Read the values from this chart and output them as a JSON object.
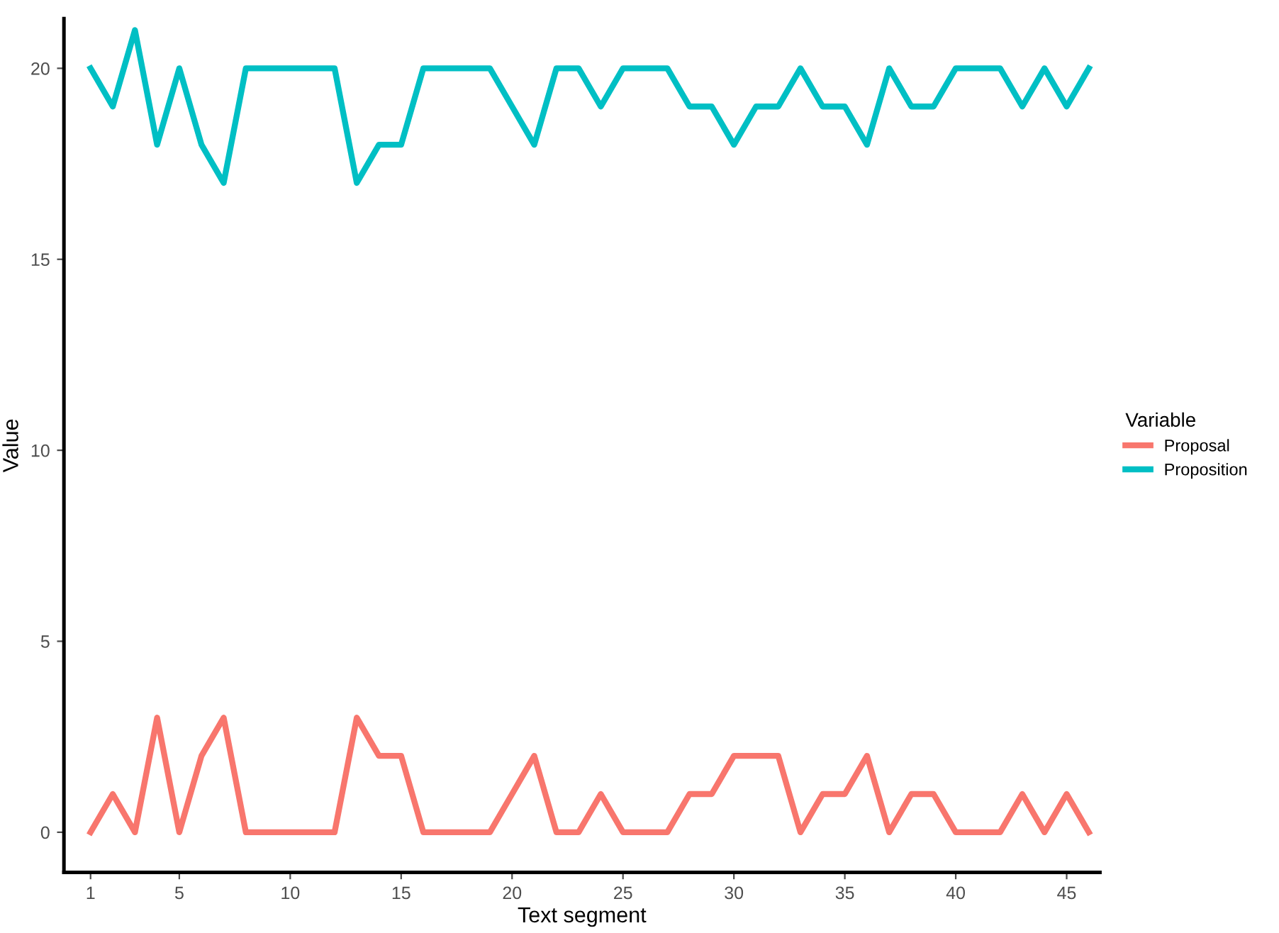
{
  "chart_data": {
    "type": "line",
    "xlabel": "Text segment",
    "ylabel": "Value",
    "legend_title": "Variable",
    "legend": "right",
    "grid": false,
    "line_style": "solid",
    "marker": "none",
    "x": [
      1,
      2,
      3,
      4,
      5,
      6,
      7,
      8,
      9,
      10,
      11,
      12,
      13,
      14,
      15,
      16,
      17,
      18,
      19,
      20,
      21,
      22,
      23,
      24,
      25,
      26,
      27,
      28,
      29,
      30,
      31,
      32,
      33,
      34,
      35,
      36,
      37,
      38,
      39,
      40,
      41,
      42,
      43,
      44,
      45,
      46
    ],
    "series": [
      {
        "name": "Proposal",
        "color": "#f8766d",
        "values": [
          0,
          1,
          0,
          3,
          0,
          2,
          3,
          0,
          0,
          0,
          0,
          0,
          3,
          2,
          2,
          0,
          0,
          0,
          0,
          1,
          2,
          0,
          0,
          1,
          0,
          0,
          0,
          1,
          1,
          2,
          2,
          2,
          0,
          1,
          1,
          2,
          0,
          1,
          1,
          0,
          0,
          0,
          1,
          0,
          1,
          0
        ]
      },
      {
        "name": "Proposition",
        "color": "#00bfc4",
        "values": [
          20,
          19,
          21,
          18,
          20,
          18,
          17,
          20,
          20,
          20,
          20,
          20,
          17,
          18,
          18,
          20,
          20,
          20,
          20,
          19,
          18,
          20,
          20,
          19,
          20,
          20,
          20,
          19,
          19,
          18,
          19,
          19,
          20,
          19,
          19,
          18,
          20,
          19,
          19,
          20,
          20,
          20,
          19,
          20,
          19,
          20
        ]
      }
    ],
    "xlim": [
      -0.2,
      46.5
    ],
    "ylim": [
      -1.05,
      21.3
    ],
    "xticks": [
      1,
      5,
      10,
      15,
      20,
      25,
      30,
      35,
      40,
      45
    ],
    "yticks": [
      0,
      5,
      10,
      15,
      20
    ]
  }
}
